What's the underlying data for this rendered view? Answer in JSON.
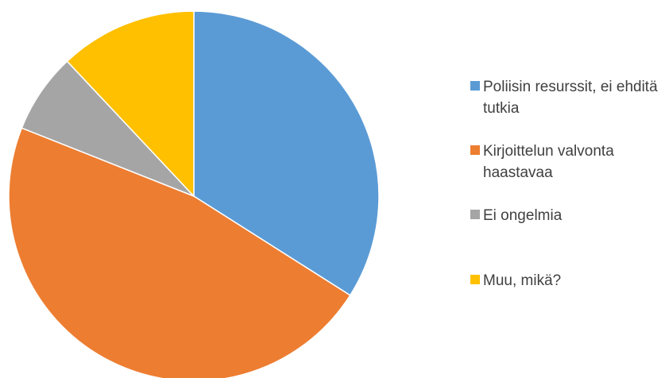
{
  "chart_data": {
    "type": "pie",
    "categories": [
      "Poliisin resurssit, ei ehditä tutkia",
      "Kirjoittelun valvonta haastavaa",
      "Ei ongelmia",
      "Muu, mikä?"
    ],
    "values": [
      34,
      47,
      7,
      12
    ],
    "colors": [
      "#5B9BD5",
      "#ED7D31",
      "#A5A5A5",
      "#FFC000"
    ],
    "start_angle_deg": 0,
    "direction": "clockwise",
    "legend_position": "right"
  },
  "legend": {
    "items": [
      {
        "label": "Poliisin resurssit, ei ehditä tutkia",
        "color": "#5B9BD5"
      },
      {
        "label": "Kirjoittelun valvonta haastavaa",
        "color": "#ED7D31"
      },
      {
        "label": "Ei ongelmia",
        "color": "#A5A5A5"
      },
      {
        "label": "Muu, mikä?",
        "color": "#FFC000"
      }
    ]
  }
}
